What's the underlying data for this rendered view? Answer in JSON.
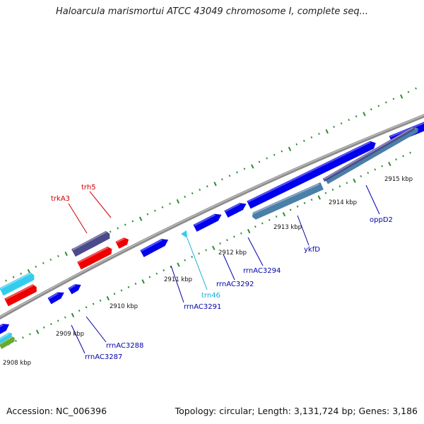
{
  "title": "Haloarcula marismortui ATCC 43049 chromosome I, complete seq...",
  "footer": {
    "accession": "Accession: NC_006396",
    "summary": "Topology: circular; Length: 3,131,724 bp; Genes: 3,186"
  },
  "colors": {
    "backbone": "#8c8c8c",
    "cds": "#0000ee",
    "rna": "#ee0000",
    "trna": "#33ccee",
    "gene_dark": "#4b4b8c",
    "gene_steel": "#4a7fa8",
    "tick": "#2e8b2e",
    "label_blue": "#0000aa",
    "label_red": "#cc0000",
    "label_cyan": "#1aaed8"
  },
  "ruler_labels": [
    {
      "text": "2908 kbp"
    },
    {
      "text": "2909 kbp"
    },
    {
      "text": "2910 kbp"
    },
    {
      "text": "2911 kbp"
    },
    {
      "text": "2912 kbp"
    },
    {
      "text": "2913 kbp"
    },
    {
      "text": "2914 kbp"
    },
    {
      "text": "2915 kbp"
    }
  ],
  "gene_labels": [
    {
      "text": "trh5",
      "kind": "red"
    },
    {
      "text": "trkA3",
      "kind": "red"
    },
    {
      "text": "trn46",
      "kind": "cyan"
    },
    {
      "text": "rrnAC3287",
      "kind": "blue"
    },
    {
      "text": "rrnAC3288",
      "kind": "blue"
    },
    {
      "text": "rrnAC3291",
      "kind": "blue"
    },
    {
      "text": "rrnAC3292",
      "kind": "blue"
    },
    {
      "text": "rrnAC3294",
      "kind": "blue"
    },
    {
      "text": "ykfD",
      "kind": "blue"
    },
    {
      "text": "oppD2",
      "kind": "blue"
    }
  ]
}
